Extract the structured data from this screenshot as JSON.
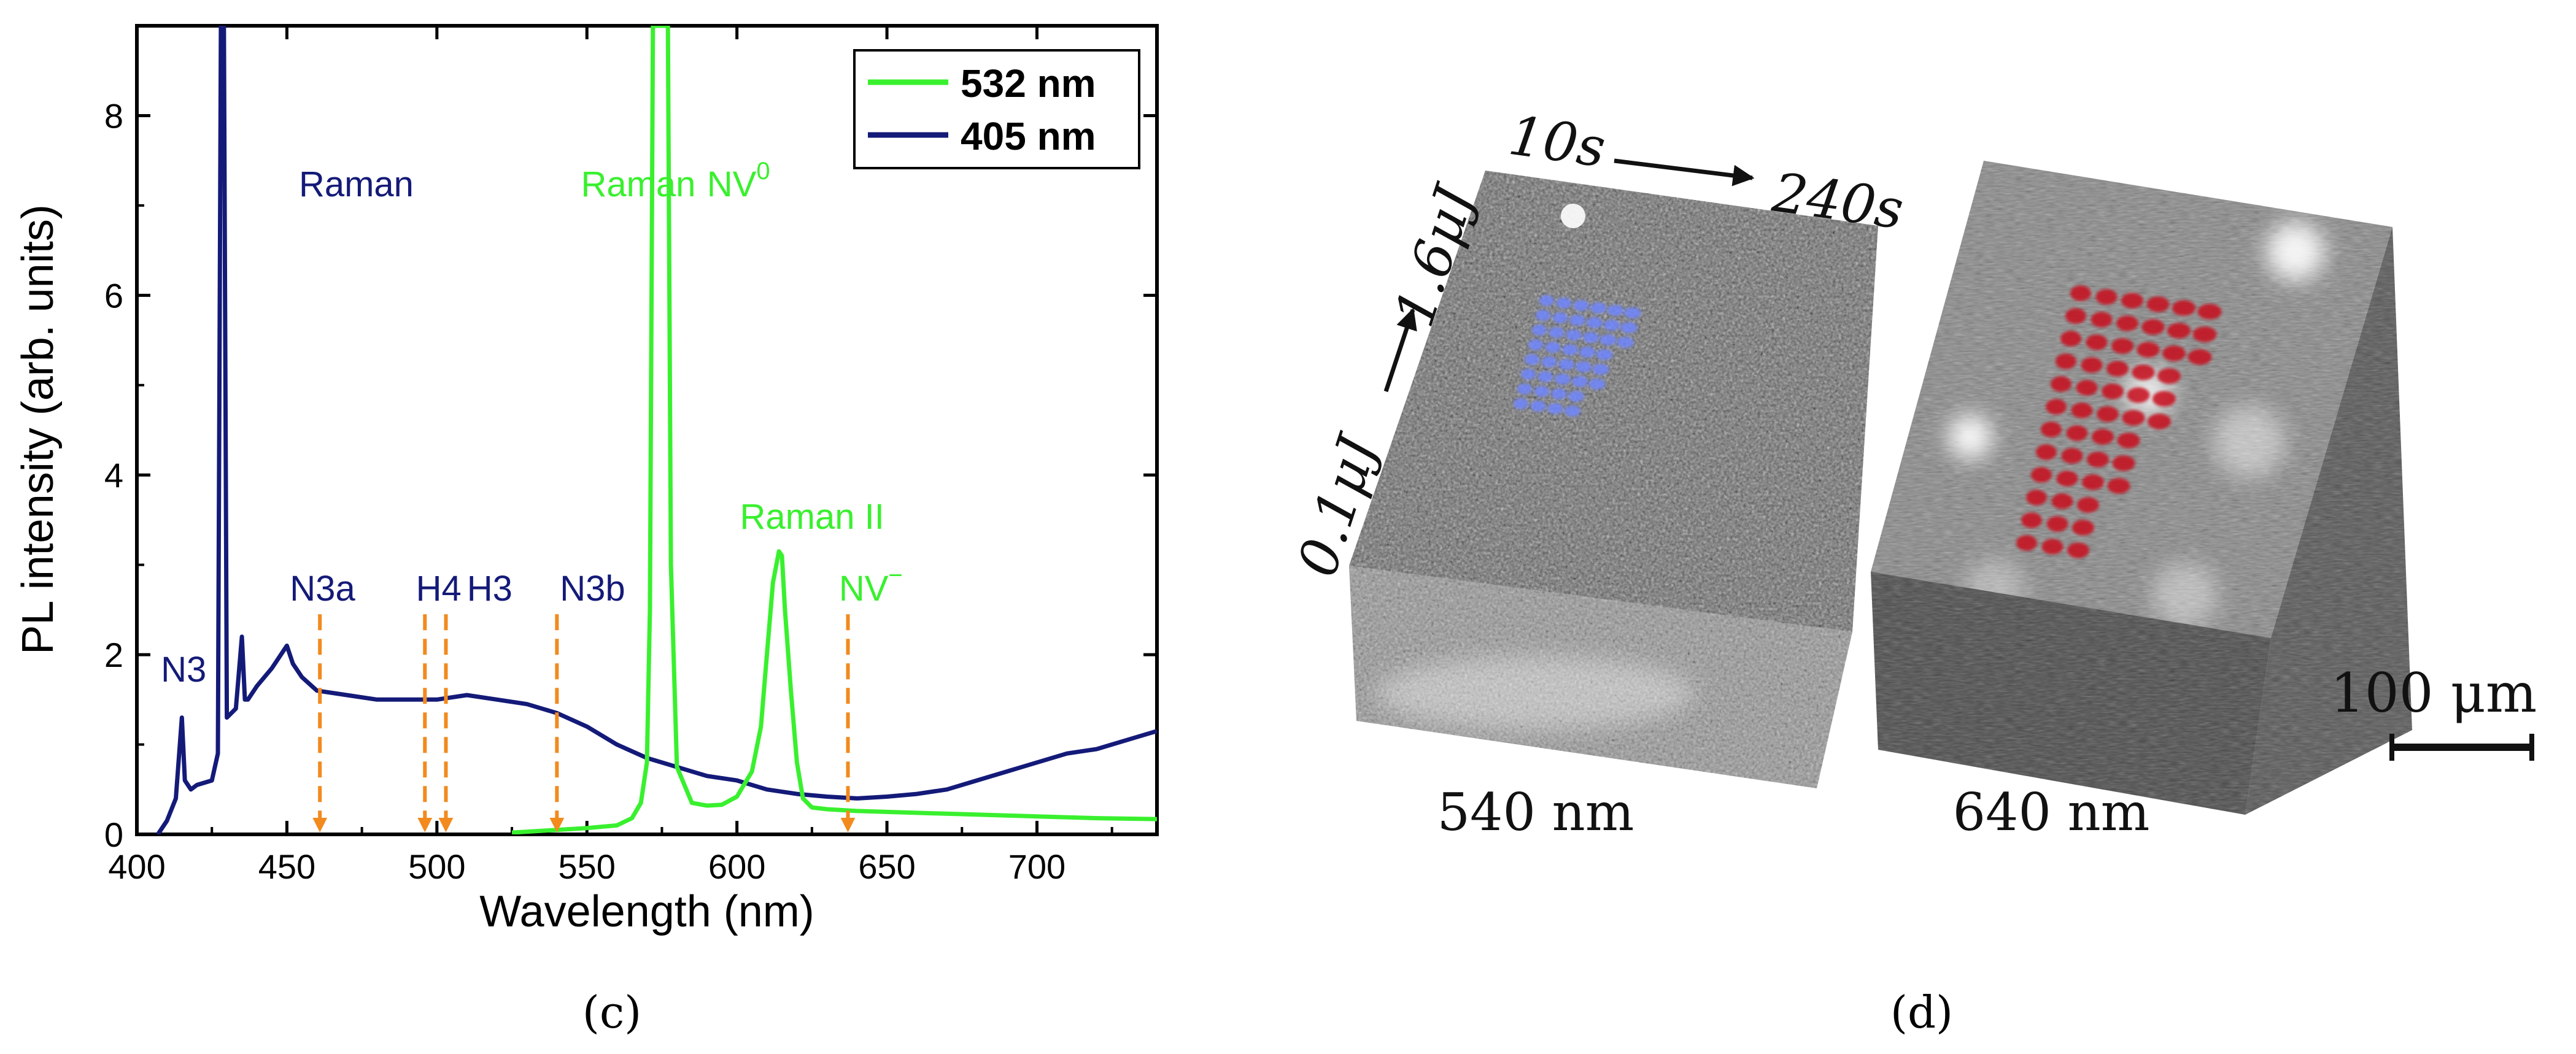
{
  "colors": {
    "green": "#39f02e",
    "navy": "#141a78",
    "orange": "#f28a1e",
    "axis": "#000000",
    "blue_dots": "#6f86ff",
    "red_dots": "#c8101c"
  },
  "panel_c": {
    "label": "(c)",
    "chart_data": {
      "type": "line",
      "title": "",
      "xlabel": "Wavelength (nm)",
      "ylabel": "PL intensity (arb. units)",
      "xlim": [
        400,
        740
      ],
      "ylim": [
        0,
        9
      ],
      "x_ticks": [
        400,
        450,
        500,
        550,
        600,
        650,
        700
      ],
      "y_ticks": [
        0,
        2,
        4,
        6,
        8
      ],
      "legend_position": "top-right",
      "series": [
        {
          "name": "532 nm",
          "color": "#39f02e",
          "x": [
            525,
            540,
            550,
            560,
            565,
            568,
            570,
            571,
            572,
            573,
            574,
            575,
            576,
            577,
            578,
            580,
            585,
            590,
            595,
            600,
            605,
            608,
            610,
            612,
            614,
            615,
            616,
            618,
            620,
            622,
            625,
            630,
            640,
            650,
            660,
            680,
            700,
            720,
            740
          ],
          "y": [
            0.02,
            0.05,
            0.07,
            0.1,
            0.18,
            0.35,
            0.8,
            2.5,
            9.0,
            9.0,
            9.0,
            9.0,
            9.0,
            9.0,
            3.0,
            0.75,
            0.35,
            0.32,
            0.33,
            0.42,
            0.7,
            1.2,
            2.0,
            2.8,
            3.15,
            3.1,
            2.5,
            1.6,
            0.8,
            0.4,
            0.3,
            0.28,
            0.26,
            0.25,
            0.24,
            0.22,
            0.2,
            0.18,
            0.17
          ]
        },
        {
          "name": "405 nm",
          "color": "#141a78",
          "x": [
            407,
            410,
            413,
            415,
            416,
            418,
            420,
            425,
            427,
            428,
            429,
            430,
            433,
            435,
            436,
            437,
            440,
            445,
            450,
            452,
            455,
            460,
            470,
            480,
            490,
            500,
            510,
            520,
            530,
            540,
            550,
            560,
            570,
            580,
            590,
            600,
            610,
            620,
            630,
            640,
            650,
            660,
            670,
            680,
            690,
            700,
            710,
            720,
            730,
            740
          ],
          "y": [
            0.0,
            0.15,
            0.4,
            1.3,
            0.6,
            0.5,
            0.55,
            0.6,
            0.9,
            9.0,
            9.0,
            1.3,
            1.4,
            2.2,
            1.5,
            1.5,
            1.65,
            1.85,
            2.1,
            1.9,
            1.75,
            1.6,
            1.55,
            1.5,
            1.5,
            1.5,
            1.55,
            1.5,
            1.45,
            1.35,
            1.2,
            1.0,
            0.85,
            0.75,
            0.65,
            0.6,
            0.5,
            0.45,
            0.42,
            0.4,
            0.42,
            0.45,
            0.5,
            0.6,
            0.7,
            0.8,
            0.9,
            0.95,
            1.05,
            1.15
          ]
        }
      ],
      "markers": [
        {
          "label": "N3a",
          "x": 461
        },
        {
          "label": "H4",
          "x": 496
        },
        {
          "label": "H3",
          "x": 503
        },
        {
          "label": "N3b",
          "x": 540
        },
        {
          "label": "NV",
          "sup": "−",
          "x": 637
        }
      ],
      "annotations": [
        {
          "text": "N3",
          "color": "navy",
          "x": 408,
          "y": 1.7
        },
        {
          "text": "Raman",
          "color": "navy",
          "x": 454,
          "y": 7.1
        },
        {
          "text": "Raman",
          "color": "green",
          "x": 548,
          "y": 7.1
        },
        {
          "text": "NV",
          "sup": "0",
          "color": "green",
          "x": 590,
          "y": 7.1
        },
        {
          "text": "Raman II",
          "color": "green",
          "x": 601,
          "y": 3.4
        },
        {
          "text": "N3a",
          "color": "navy",
          "x": 451,
          "y": 2.6
        },
        {
          "text": "H4",
          "color": "navy",
          "x": 493,
          "y": 2.6
        },
        {
          "text": "H3",
          "color": "navy",
          "x": 510,
          "y": 2.6
        },
        {
          "text": "N3b",
          "color": "navy",
          "x": 541,
          "y": 2.6
        },
        {
          "text": "NV",
          "sup": "−",
          "color": "green",
          "x": 634,
          "y": 2.6
        }
      ]
    }
  },
  "panel_d": {
    "label": "(d)",
    "energy_start": "0.1μJ",
    "energy_end": "1.6μJ",
    "time_start": "10s",
    "time_end": "240s",
    "block_left_label": "540 nm",
    "block_right_label": "640 nm",
    "scale_bar_label": "100 μm"
  }
}
